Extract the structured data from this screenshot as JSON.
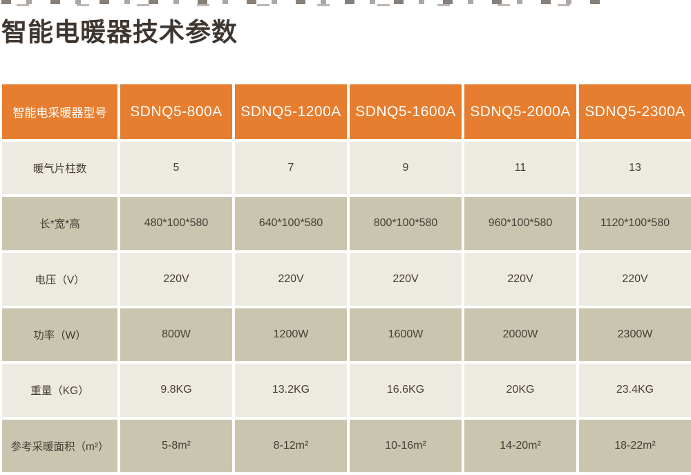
{
  "page": {
    "title": "智能电暖器技术参数"
  },
  "colors": {
    "header_bg": "#E77D2E",
    "row_light_bg": "#EDEAE2",
    "row_tan_bg": "#C9C5AF",
    "header_text": "#FFFFFF",
    "body_text": "#483E36"
  },
  "table": {
    "header": [
      "智能电采暖器型号",
      "SDNQ5-800A",
      "SDNQ5-1200A",
      "SDNQ5-1600A",
      "SDNQ5-2000A",
      "SDNQ5-2300A"
    ],
    "rows": [
      {
        "label": "暖气片柱数",
        "values": [
          "5",
          "7",
          "9",
          "11",
          "13"
        ]
      },
      {
        "label": "长*宽*高",
        "values": [
          "480*100*580",
          "640*100*580",
          "800*100*580",
          "960*100*580",
          "1120*100*580"
        ]
      },
      {
        "label": "电压（V）",
        "values": [
          "220V",
          "220V",
          "220V",
          "220V",
          "220V"
        ]
      },
      {
        "label": "功率（W）",
        "values": [
          "800W",
          "1200W",
          "1600W",
          "2000W",
          "2300W"
        ]
      },
      {
        "label": "重量（KG）",
        "values": [
          "9.8KG",
          "13.2KG",
          "16.6KG",
          "20KG",
          "23.4KG"
        ]
      },
      {
        "label": "参考采暖面积（m²）",
        "values": [
          "5-8m²",
          "8-12m²",
          "10-16m²",
          "14-20m²",
          "18-22m²"
        ]
      }
    ]
  }
}
